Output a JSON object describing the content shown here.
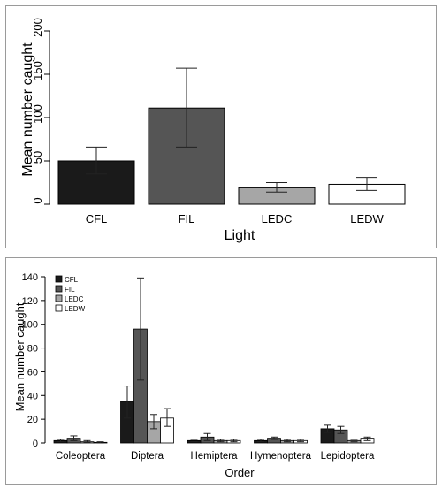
{
  "colors": {
    "CFL": "#1a1a1a",
    "FIL": "#555555",
    "LEDC": "#a6a6a6",
    "LEDW": "#ffffff",
    "outline": "#000000"
  },
  "chart_data": [
    {
      "type": "bar",
      "categories": [
        "CFL",
        "FIL",
        "LEDC",
        "LEDW"
      ],
      "values": [
        50,
        111,
        19,
        23
      ],
      "error_low": [
        35,
        66,
        14,
        16
      ],
      "error_high": [
        66,
        157,
        25,
        31
      ],
      "title": "",
      "xlabel": "Light",
      "ylabel": "Mean number caught",
      "ylim": [
        0,
        200
      ],
      "yticks": [
        "0",
        "50",
        "100",
        "150",
        "200"
      ],
      "grid": false,
      "legend": "none"
    },
    {
      "type": "bar",
      "categories": [
        "Coleoptera",
        "Diptera",
        "Hemiptera",
        "Hymenoptera",
        "Lepidoptera"
      ],
      "series": [
        {
          "name": "CFL",
          "values": [
            2,
            35,
            2,
            2,
            12
          ],
          "error_low": [
            1,
            21,
            1,
            1,
            9
          ],
          "error_high": [
            3,
            48,
            3,
            3,
            15
          ]
        },
        {
          "name": "FIL",
          "values": [
            4,
            96,
            5,
            4,
            11
          ],
          "error_low": [
            2,
            53,
            2,
            3,
            8
          ],
          "error_high": [
            6,
            139,
            8,
            5,
            14
          ]
        },
        {
          "name": "LEDC",
          "values": [
            1,
            18,
            2,
            2,
            2
          ],
          "error_low": [
            0.5,
            12,
            1,
            1,
            1
          ],
          "error_high": [
            2,
            24,
            3,
            3,
            3
          ]
        },
        {
          "name": "LEDW",
          "values": [
            0.5,
            21,
            2,
            2,
            4
          ],
          "error_low": [
            0,
            14,
            1,
            1,
            2
          ],
          "error_high": [
            1,
            29,
            3,
            3,
            5
          ]
        }
      ],
      "title": "",
      "xlabel": "Order",
      "ylabel": "Mean number caught",
      "ylim": [
        0,
        140
      ],
      "yticks": [
        "0",
        "20",
        "40",
        "60",
        "80",
        "100",
        "120",
        "140"
      ],
      "grid": false,
      "legend": "top-left"
    }
  ]
}
